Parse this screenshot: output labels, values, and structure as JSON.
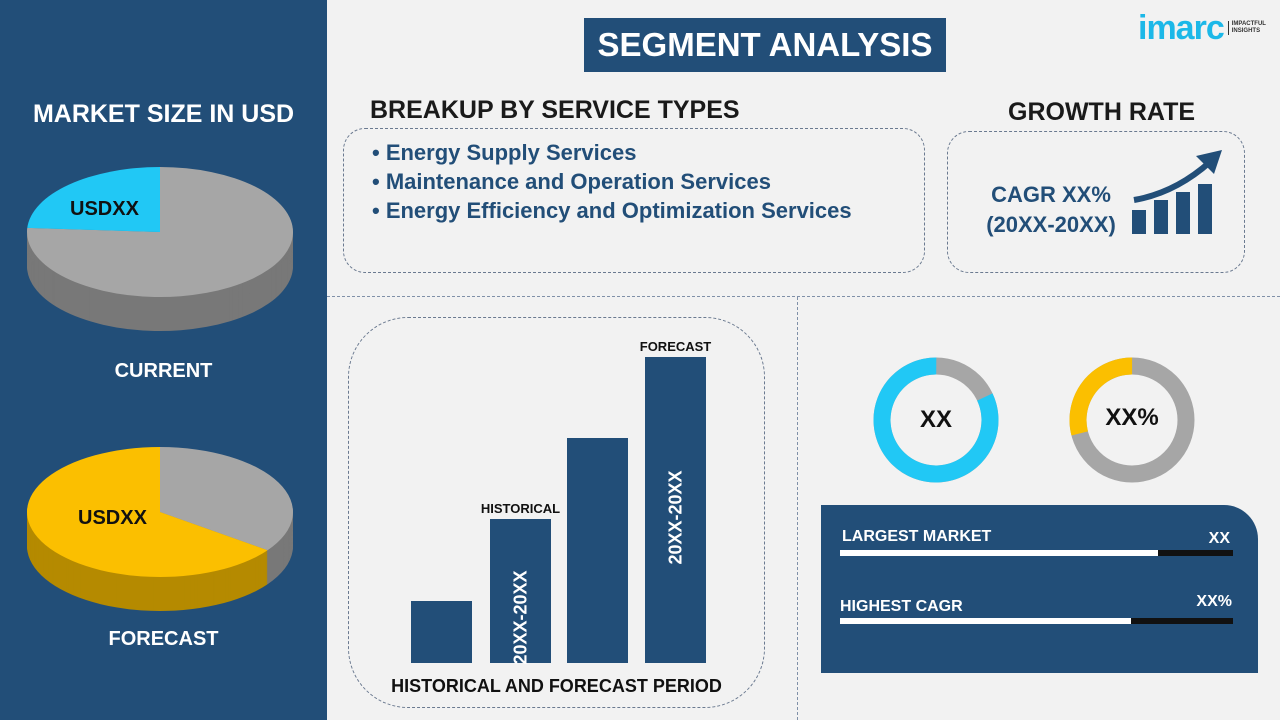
{
  "title": "SEGMENT ANALYSIS",
  "logo": {
    "brand": "imarc",
    "tagline_1": "IMPACTFUL",
    "tagline_2": "INSIGHTS",
    "color": "#1cb8e8"
  },
  "left_panel": {
    "heading": "MARKET SIZE IN USD",
    "current": {
      "label": "CURRENT",
      "value": "USDXX",
      "highlight_share": 0.24,
      "highlight_color": "#21c8f5"
    },
    "forecast": {
      "label": "FORECAST",
      "value": "USDXX",
      "highlight_share": 0.65,
      "highlight_color": "#fbbf00"
    }
  },
  "service_types": {
    "heading": "BREAKUP BY SERVICE TYPES",
    "items": [
      "Energy Supply Services",
      "Maintenance and Operation Services",
      "Energy Efficiency and Optimization Services"
    ]
  },
  "growth": {
    "heading": "GROWTH RATE",
    "cagr": "CAGR XX%",
    "period": "(20XX-20XX)",
    "icon": "growth-chart-icon"
  },
  "period_chart": {
    "type": "bar",
    "values": [
      1,
      2.3,
      3.6,
      4.9
    ],
    "historical_label": "HISTORICAL",
    "forecast_label": "FORECAST",
    "historical_bar_label": "20XX-20XX",
    "forecast_bar_label": "20XX-20XX",
    "xlabel": "HISTORICAL AND FORECAST PERIOD",
    "bar_color": "#224e78"
  },
  "donuts": [
    {
      "label": "XX",
      "share": 0.82,
      "color": "#21c8f5"
    },
    {
      "label": "XX%",
      "share": 0.29,
      "color": "#fbbf00"
    }
  ],
  "stats": [
    {
      "label": "LARGEST MARKET",
      "value": "XX",
      "fill": 0.81
    },
    {
      "label": "HIGHEST CAGR",
      "value": "XX%",
      "fill": 0.74
    }
  ]
}
